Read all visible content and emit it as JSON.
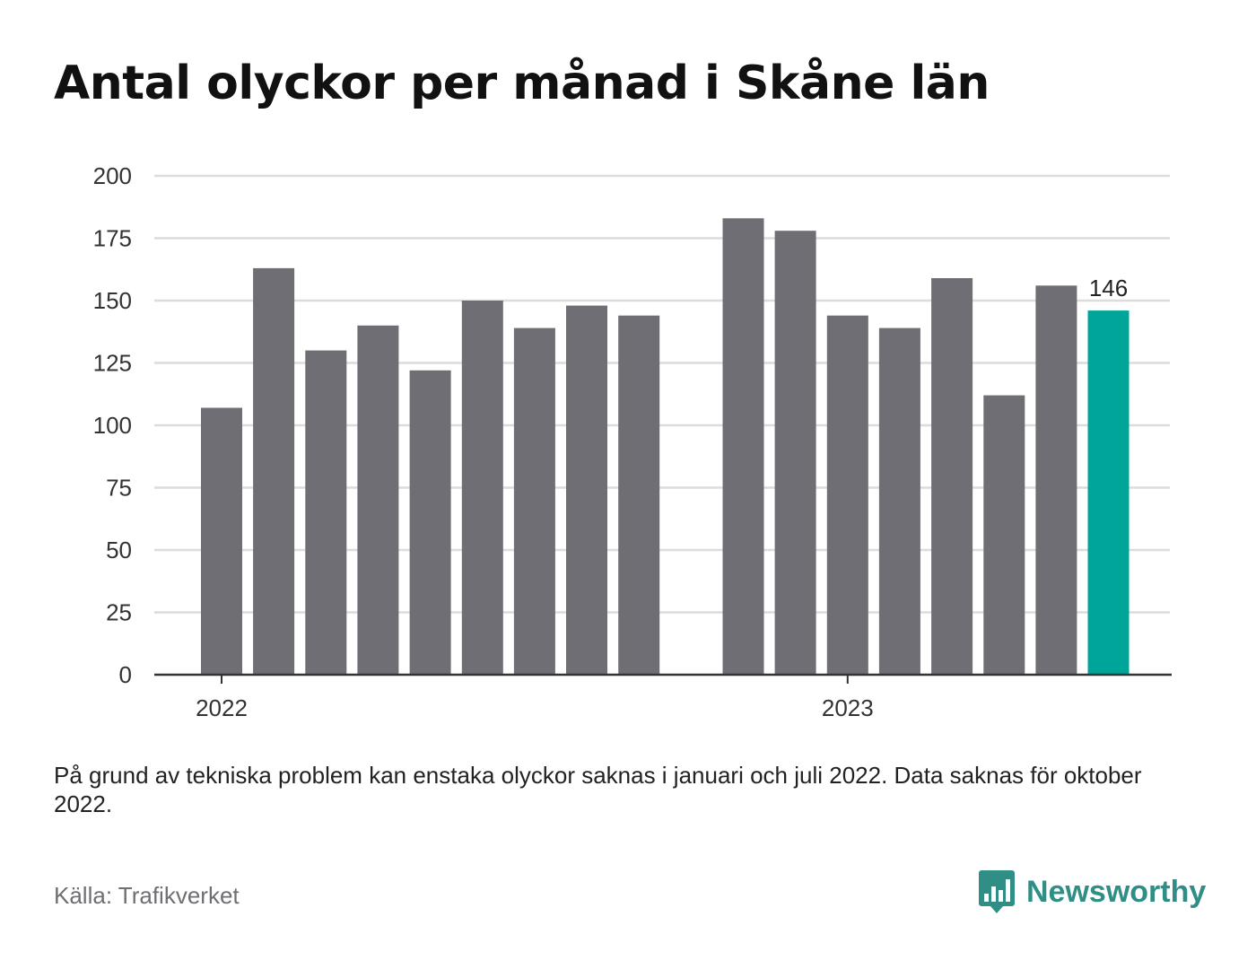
{
  "title": "Antal olyckor per månad i Skåne län",
  "note": "På grund av tekniska problem kan enstaka olyckor saknas i januari och juli 2022. Data saknas för oktober 2022.",
  "source": "Källa: Trafikverket",
  "brand": {
    "name": "Newsworthy",
    "color": "#2f8f86",
    "icon": "bar-chart-speech-bubble-icon"
  },
  "chart_data": {
    "type": "bar",
    "categories": [
      "2022-01",
      "2022-02",
      "2022-03",
      "2022-04",
      "2022-05",
      "2022-06",
      "2022-07",
      "2022-08",
      "2022-09",
      "2022-11",
      "2022-12",
      "2023-01",
      "2023-02",
      "2023-03",
      "2023-04",
      "2023-05",
      "2023-06"
    ],
    "values": [
      107,
      163,
      130,
      140,
      122,
      150,
      139,
      148,
      144,
      183,
      178,
      144,
      139,
      159,
      112,
      156,
      146
    ],
    "missing": [
      "2022-10"
    ],
    "highlight": {
      "category": "2023-06",
      "label": "146"
    },
    "ylim": [
      0,
      200
    ],
    "yticks": [
      0,
      25,
      50,
      75,
      100,
      125,
      150,
      175,
      200
    ],
    "xticks": [
      {
        "label": "2022",
        "at": "2022-01"
      },
      {
        "label": "2023",
        "at": "2023-01"
      }
    ],
    "grid": true,
    "colors": {
      "bar": "#6f6e74",
      "highlight": "#00a599",
      "grid": "#dcdcdc",
      "axis": "#333333",
      "tick_text": "#333333"
    }
  }
}
